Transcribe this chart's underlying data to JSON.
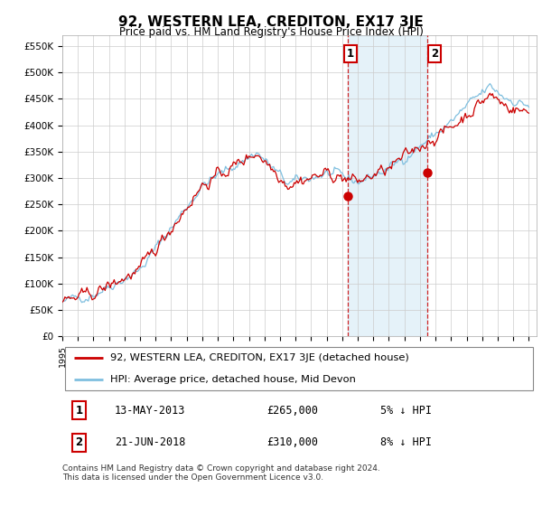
{
  "title": "92, WESTERN LEA, CREDITON, EX17 3JE",
  "subtitle": "Price paid vs. HM Land Registry's House Price Index (HPI)",
  "ylabel_ticks": [
    "£0",
    "£50K",
    "£100K",
    "£150K",
    "£200K",
    "£250K",
    "£300K",
    "£350K",
    "£400K",
    "£450K",
    "£500K",
    "£550K"
  ],
  "ytick_values": [
    0,
    50000,
    100000,
    150000,
    200000,
    250000,
    300000,
    350000,
    400000,
    450000,
    500000,
    550000
  ],
  "ylim": [
    0,
    570000
  ],
  "xlim_start": 1995.0,
  "xlim_end": 2025.5,
  "sale1_date": 2013.36,
  "sale1_price": 265000,
  "sale1_label": "1",
  "sale2_date": 2018.47,
  "sale2_price": 310000,
  "sale2_label": "2",
  "legend_line1": "92, WESTERN LEA, CREDITON, EX17 3JE (detached house)",
  "legend_line2": "HPI: Average price, detached house, Mid Devon",
  "footer": "Contains HM Land Registry data © Crown copyright and database right 2024.\nThis data is licensed under the Open Government Licence v3.0.",
  "hpi_color": "#7fbfdf",
  "price_color": "#cc0000",
  "sale_marker_color": "#cc0000",
  "vline_color": "#cc0000",
  "shading_color": "#d0e8f5",
  "background_color": "#ffffff",
  "grid_color": "#cccccc"
}
